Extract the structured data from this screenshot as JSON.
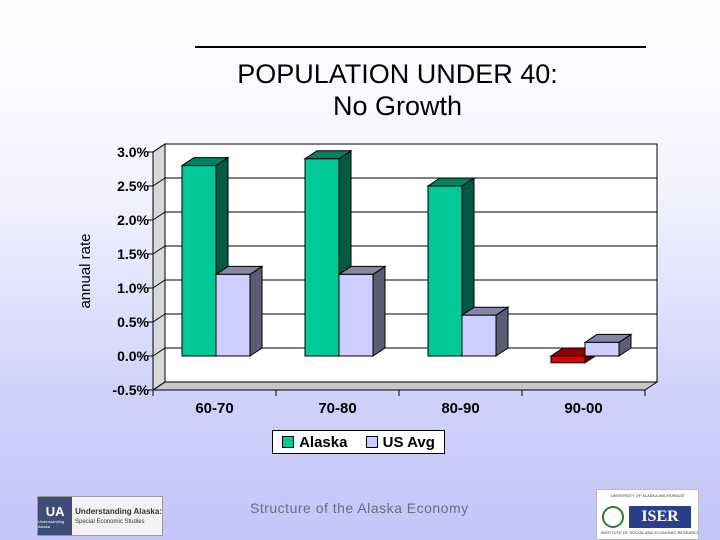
{
  "slide": {
    "title_line1": "POPULATION UNDER 40:",
    "title_line2": "No Growth",
    "footer": "Structure of the Alaska Economy"
  },
  "logos": {
    "left": {
      "mark": "UA",
      "mark_sub": "Understanding Alaska",
      "title": "Understanding Alaska:",
      "subtitle": "Special Economic Studies"
    },
    "right": {
      "top": "UNIVERSITY OF ALASKA ANCHORAGE",
      "name": "ISER",
      "bottom": "INSTITUTE OF SOCIAL AND ECONOMIC RESEARCH"
    }
  },
  "legend": {
    "items": [
      {
        "label": "Alaska",
        "color": "#00c896"
      },
      {
        "label": "US Avg",
        "color": "#cdcdff"
      }
    ]
  },
  "colors": {
    "alaska": "#00c896",
    "alaska_negative": "#e00000",
    "us_avg": "#cdcdff",
    "plot_bg": "#ffffff"
  },
  "chart_data": {
    "type": "bar",
    "title": "POPULATION UNDER 40: No Growth",
    "subtitle": "",
    "ylabel": "annual rate",
    "xlabel": "",
    "categories": [
      "60-70",
      "70-80",
      "80-90",
      "90-00"
    ],
    "series": [
      {
        "name": "Alaska",
        "values": [
          2.8,
          2.9,
          2.5,
          -0.1
        ]
      },
      {
        "name": "US Avg",
        "values": [
          1.2,
          1.2,
          0.6,
          0.2
        ]
      }
    ],
    "ylim": [
      -0.5,
      3.0
    ],
    "yticks": [
      "3.0%",
      "2.5%",
      "2.0%",
      "1.5%",
      "1.0%",
      "0.5%",
      "0.0%",
      "-0.5%"
    ],
    "ytick_values": [
      3.0,
      2.5,
      2.0,
      1.5,
      1.0,
      0.5,
      0.0,
      -0.5
    ],
    "grid": true,
    "three_d": true,
    "legend_position": "bottom"
  }
}
